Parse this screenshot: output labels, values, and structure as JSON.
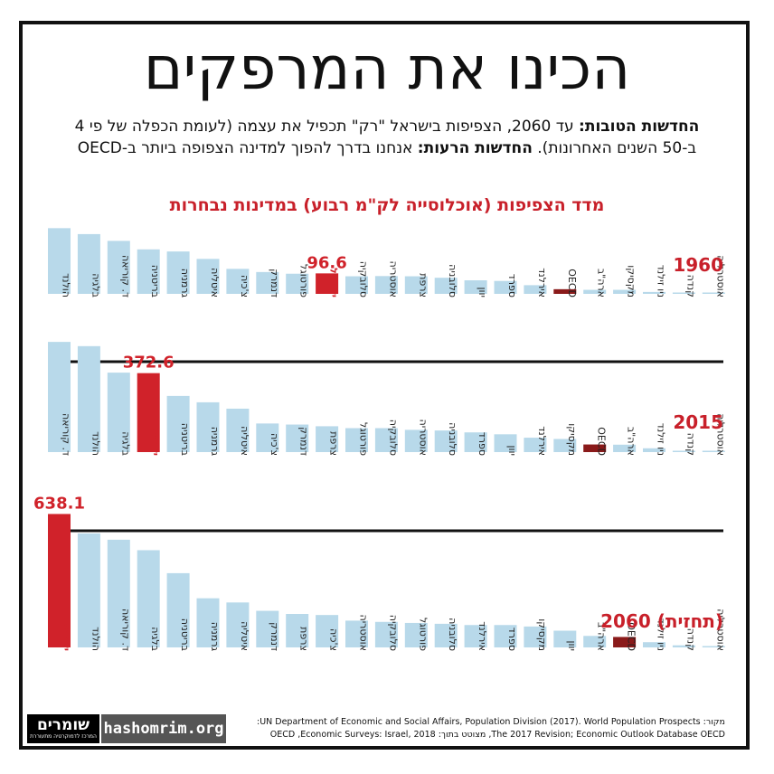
{
  "title": "הכינו את המרפקים",
  "subtitle": {
    "good_label": "החדשות הטובות:",
    "good_text": " עד 2060, הצפיפות בישראל \"רק\" תכפיל את עצמה (לעומת הכפלה של פי 4 ב-50 השנים האחרונות). ",
    "bad_label": "החדשות הרעות:",
    "bad_text": " אנחנו בדרך להפוך למדינה הצפופה ביותר ב-OECD"
  },
  "chart_heading": "מדד הצפיפות (אוכלוסייה לק\"מ רבוע) במדינות נבחרות",
  "colors": {
    "bar": "#b8d9ea",
    "israel": "#d0222a",
    "oecd": "#8a1a1a",
    "title_red": "#c8202a"
  },
  "chart_data": [
    {
      "type": "bar",
      "year_label": "1960",
      "highlight_value_label": "96.6",
      "categories": [
        "הולנד",
        "בלגיה",
        "ד. קוריאה",
        "בריטניה",
        "גרמניה",
        "איטליה",
        "צ'כיה",
        "דנמרק",
        "פורטוגל",
        "ישראל",
        "סלובקיה",
        "אוסטריה",
        "צרפת",
        "סלובניה",
        "יוון",
        "ספרד",
        "אירלנד",
        "OECD",
        "ארה\"ב",
        "מקסיקו",
        "ניו זילנד",
        "קנדה",
        "אוסטרליה"
      ],
      "values": [
        310,
        282,
        250,
        210,
        200,
        165,
        118,
        103,
        95,
        96.6,
        83,
        84,
        83,
        76,
        64,
        61,
        41,
        22,
        19,
        19,
        9,
        2,
        1
      ],
      "highlight": {
        "israel": 9,
        "oecd": 17
      },
      "ylim": [
        0,
        660
      ]
    },
    {
      "type": "bar",
      "year_label": "2015",
      "highlight_value_label": "372.6",
      "categories": [
        "ד. קוריאה",
        "הולנד",
        "בלגיה",
        "ישראל",
        "בריטניה",
        "גרמניה",
        "איטליה",
        "צ'כיה",
        "דנמרק",
        "צרפת",
        "פורטוגל",
        "סלובקיה",
        "אוסטריה",
        "סלובניה",
        "ספרד",
        "יוון",
        "אירלנד",
        "מקסיקו",
        "OECD",
        "ארה\"ב",
        "ניו זילנד",
        "קנדה",
        "אוסטרליה"
      ],
      "values": [
        520,
        500,
        375,
        372.6,
        265,
        235,
        205,
        135,
        130,
        122,
        113,
        113,
        105,
        102,
        93,
        84,
        68,
        62,
        36,
        35,
        18,
        4,
        3
      ],
      "highlight": {
        "israel": 3,
        "oecd": 18
      },
      "ylim": [
        0,
        660
      ]
    },
    {
      "type": "bar",
      "year_label": "2060 (תחזית)",
      "highlight_value_label": "638.1",
      "categories": [
        "ישראל",
        "הולנד",
        "ד. קוריאה",
        "בלגיה",
        "בריטניה",
        "גרמניה",
        "איטליה",
        "דנמרק",
        "צרפת",
        "צ'כיה",
        "אוסטריה",
        "סלובקיה",
        "פורטוגל",
        "סלובניה",
        "אירלנד",
        "ספרד",
        "מקסיקו",
        "יוון",
        "ארה\"ב",
        "OECD",
        "ניו זילנד",
        "קנדה",
        "אוסטרליה"
      ],
      "values": [
        638.1,
        545,
        515,
        465,
        355,
        235,
        215,
        175,
        160,
        155,
        128,
        122,
        117,
        113,
        107,
        107,
        100,
        80,
        55,
        50,
        25,
        10,
        5
      ],
      "highlight": {
        "israel": 0,
        "oecd": 19
      },
      "ylim": [
        0,
        660
      ]
    }
  ],
  "footer": {
    "logo_main": "שומרים",
    "logo_sub": "המרכז לדמוקרטיה מתעוררת",
    "site": "hashomrim.org",
    "source_line1": "מקור: UN Department of Economic and Social Affairs, Population Division (2017). World Population Prospects:",
    "source_line2": "The 2017 Revision; Economic Outlook Database OECD, מצוטט בתוך: OECD ,Economic Surveys: Israel, 2018"
  }
}
